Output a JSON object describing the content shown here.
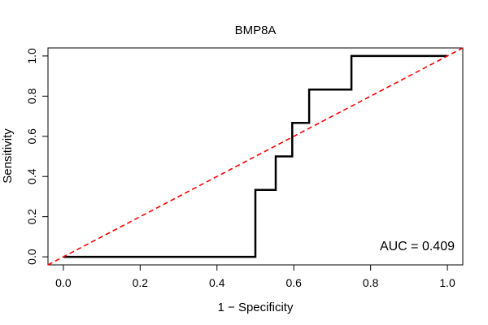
{
  "chart_data": {
    "type": "line",
    "title": "BMP8A",
    "xlabel": "1 − Specificity",
    "ylabel": "Sensitivity",
    "xlim": [
      -0.04,
      1.04
    ],
    "ylim": [
      -0.04,
      1.04
    ],
    "x_ticks": [
      0.0,
      0.2,
      0.4,
      0.6,
      0.8,
      1.0
    ],
    "y_ticks": [
      0.0,
      0.2,
      0.4,
      0.6,
      0.8,
      1.0
    ],
    "x_tick_labels": [
      "0.0",
      "0.2",
      "0.4",
      "0.6",
      "0.8",
      "1.0"
    ],
    "y_tick_labels": [
      "0.0",
      "0.2",
      "0.4",
      "0.6",
      "0.8",
      "1.0"
    ],
    "grid": false,
    "series": [
      {
        "style": "step",
        "color": "#000000",
        "x": [
          0.0,
          0.5,
          0.5,
          0.553,
          0.553,
          0.596,
          0.596,
          0.64,
          0.64,
          0.75,
          0.75,
          1.0
        ],
        "y": [
          0.0,
          0.0,
          0.333,
          0.333,
          0.5,
          0.5,
          0.667,
          0.667,
          0.833,
          0.833,
          1.0,
          1.0
        ]
      },
      {
        "style": "dashed",
        "color": "#ff0000",
        "x": [
          -0.04,
          1.04
        ],
        "y": [
          -0.04,
          1.04
        ]
      }
    ],
    "annotations": [
      {
        "text": "AUC = 0.409",
        "placement": "bottom-right"
      }
    ]
  }
}
